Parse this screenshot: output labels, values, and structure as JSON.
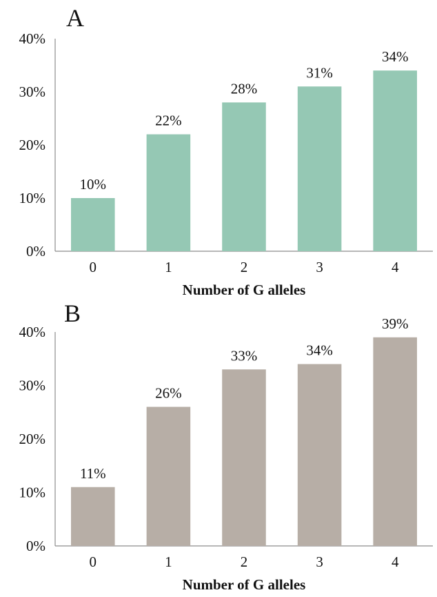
{
  "chart_data": [
    {
      "type": "bar",
      "panel_label": "A",
      "categories": [
        "0",
        "1",
        "2",
        "3",
        "4"
      ],
      "values": [
        10,
        22,
        28,
        31,
        34
      ],
      "data_labels": [
        "10%",
        "22%",
        "28%",
        "31%",
        "34%"
      ],
      "xlabel": "Number of G alleles",
      "ylabel": "",
      "ylim": [
        0,
        40
      ],
      "yticks": [
        "0%",
        "10%",
        "20%",
        "30%",
        "40%"
      ],
      "grid": false,
      "bar_color": "#95c8b4"
    },
    {
      "type": "bar",
      "panel_label": "B",
      "categories": [
        "0",
        "1",
        "2",
        "3",
        "4"
      ],
      "values": [
        11,
        26,
        33,
        34,
        39
      ],
      "data_labels": [
        "11%",
        "26%",
        "33%",
        "34%",
        "39%"
      ],
      "xlabel": "Number of G alleles",
      "ylabel": "",
      "ylim": [
        0,
        40
      ],
      "yticks": [
        "0%",
        "10%",
        "20%",
        "30%",
        "40%"
      ],
      "grid": false,
      "bar_color": "#b7aea6"
    }
  ]
}
